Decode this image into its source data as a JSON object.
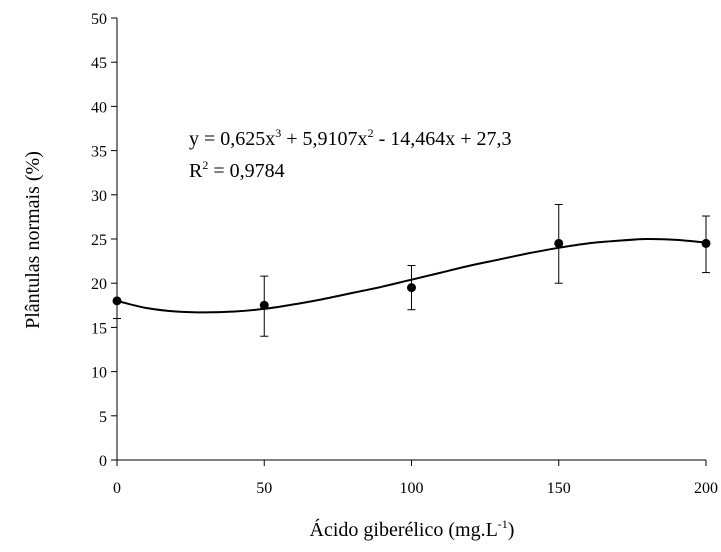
{
  "chart_data": {
    "type": "scatter",
    "xlabel": "Ácido giberélico (mg.L",
    "xlabel_sup": "-1",
    "xlabel_end": ")",
    "ylabel": "Plântulas normais (%)",
    "xlim": [
      0,
      200
    ],
    "ylim": [
      0,
      50
    ],
    "x_ticks": [
      "0",
      "50",
      "100",
      "150",
      "200"
    ],
    "y_ticks": [
      "0",
      "5",
      "10",
      "15",
      "20",
      "25",
      "30",
      "35",
      "40",
      "45",
      "50"
    ],
    "grid": false,
    "points": [
      {
        "x": 0,
        "y": 18.0,
        "err_low": 16.0,
        "err_high": 18.0
      },
      {
        "x": 50,
        "y": 17.5,
        "err_low": 14.0,
        "err_high": 20.8
      },
      {
        "x": 100,
        "y": 19.5,
        "err_low": 17.0,
        "err_high": 22.0
      },
      {
        "x": 150,
        "y": 24.5,
        "err_low": 20.0,
        "err_high": 28.9
      },
      {
        "x": 200,
        "y": 24.5,
        "err_low": 21.2,
        "err_high": 27.6
      }
    ],
    "trendline": {
      "type": "polynomial-3",
      "x": [
        0,
        10,
        20,
        30,
        40,
        50,
        60,
        70,
        80,
        90,
        100,
        110,
        120,
        130,
        140,
        150,
        160,
        170,
        180,
        190,
        200
      ],
      "y": [
        18.0,
        17.2,
        16.8,
        16.7,
        16.8,
        17.1,
        17.6,
        18.2,
        18.9,
        19.6,
        20.4,
        21.2,
        22.0,
        22.7,
        23.4,
        24.0,
        24.5,
        24.8,
        25.0,
        24.9,
        24.6
      ]
    },
    "equation": {
      "parts": [
        "y = 0,625x",
        "3",
        " + 5,9107x",
        "2",
        " - 14,464x + 27,3"
      ],
      "r2_parts": [
        "R",
        "2",
        " = 0,9784"
      ]
    }
  }
}
